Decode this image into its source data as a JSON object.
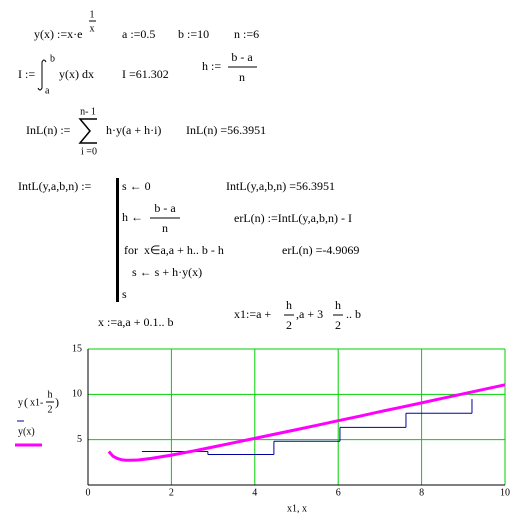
{
  "worksheet": {
    "y_def": {
      "lhs": "y(x) :=x·e",
      "exp_num": "1",
      "exp_den": "x"
    },
    "a_def": "a :=0.5",
    "b_def": "b :=10",
    "n_def": "n :=6",
    "I_def": {
      "lhs": "I :=",
      "upper": "b",
      "lower": "a",
      "integrand": "y(x) dx"
    },
    "I_result": "I =61.302",
    "h_def": {
      "lhs": "h :=",
      "num": "b - a",
      "den": "n"
    },
    "lnL_def": {
      "lhs": "InL(n) :=",
      "upper": "n- 1",
      "lower": "i =0",
      "body": "h·y(a + h·i)"
    },
    "lnL_result": "InL(n) =56.3951",
    "lntL_def": {
      "lhs": "IntL(y,a,b,n) :=",
      "line1": "s ← 0",
      "line2": {
        "lhs": "h ←",
        "num": "b - a",
        "den": "n"
      },
      "line3": "for  x∈a,a + h.. b - h",
      "line4": "s ← s + h·y(x)",
      "line5": "s"
    },
    "lntL_result": "IntL(y,a,b,n) =56.3951",
    "erL_def": "erL(n) :=IntL(y,a,b,n) - I",
    "erL_result": "erL(n) =-4.9069",
    "x_range": "x :=a,a + 0.1.. b",
    "x1_def": {
      "p1": "x1:=a +",
      "f1_num": "h",
      "f1_den": "2",
      "p2": ",a + 3",
      "f2_num": "h",
      "f2_den": "2",
      "p3": ".. b"
    }
  },
  "plot": {
    "type": "line",
    "x_label": "x1, x",
    "xlim": [
      0,
      10
    ],
    "ylim": [
      0,
      15
    ],
    "xticks": [
      0,
      2,
      4,
      6,
      8,
      10
    ],
    "yticks": [
      5,
      10,
      15
    ],
    "grid": true,
    "grid_color": "#00d000",
    "series": [
      {
        "name": {
          "func": "y",
          "arg": "x1-",
          "num": "h",
          "den": "2"
        },
        "color": "#0000a0",
        "style": "step",
        "x": [
          1.292,
          2.875,
          4.458,
          6.042,
          7.625,
          9.208
        ],
        "values": [
          3.69,
          3.37,
          4.82,
          6.35,
          7.91,
          9.48
        ]
      },
      {
        "name": "y(x)",
        "color": "#ff00ff",
        "style": "line",
        "x": [
          0.5,
          0.6,
          0.7,
          0.8,
          0.9,
          1.0,
          1.2,
          1.5,
          2.0,
          2.5,
          3.0,
          3.5,
          4.0,
          4.5,
          5.0,
          5.5,
          6.0,
          6.5,
          7.0,
          7.5,
          8.0,
          8.5,
          9.0,
          9.5,
          10.0
        ],
        "values": [
          3.69,
          3.18,
          2.92,
          2.79,
          2.73,
          2.72,
          2.76,
          2.92,
          3.3,
          3.73,
          4.19,
          4.66,
          5.14,
          5.62,
          6.11,
          6.6,
          7.09,
          7.58,
          8.08,
          8.57,
          9.06,
          9.56,
          10.06,
          10.55,
          11.05
        ]
      }
    ]
  }
}
